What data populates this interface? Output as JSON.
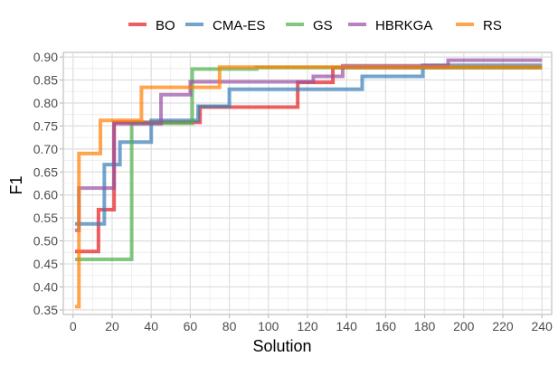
{
  "chart_data": {
    "type": "line",
    "step": true,
    "xlabel": "Solution",
    "ylabel": "F1",
    "xlim": [
      -5,
      245
    ],
    "ylim": [
      0.34,
      0.91
    ],
    "xticks": [
      0,
      20,
      40,
      60,
      80,
      100,
      120,
      140,
      160,
      180,
      200,
      220,
      240
    ],
    "yticks": [
      0.35,
      0.4,
      0.45,
      0.5,
      0.55,
      0.6,
      0.65,
      0.7,
      0.75,
      0.8,
      0.85,
      0.9
    ],
    "ytick_labels": [
      "0.35",
      "0.40",
      "0.45",
      "0.50",
      "0.55",
      "0.60",
      "0.65",
      "0.70",
      "0.75",
      "0.80",
      "0.85",
      "0.90"
    ],
    "grid": true,
    "legend_position": "top",
    "series": [
      {
        "name": "BO",
        "color": "#E41A1C",
        "x": [
          1,
          13,
          21,
          65,
          115,
          133,
          240
        ],
        "y": [
          0.477,
          0.568,
          0.758,
          0.791,
          0.845,
          0.877,
          0.877
        ]
      },
      {
        "name": "CMA-ES",
        "color": "#377EB8",
        "x": [
          1,
          16,
          24,
          40,
          64,
          80,
          148,
          179,
          240
        ],
        "y": [
          0.537,
          0.666,
          0.715,
          0.762,
          0.793,
          0.83,
          0.858,
          0.882,
          0.882
        ]
      },
      {
        "name": "GS",
        "color": "#4DAF4A",
        "x": [
          1,
          30,
          61,
          94,
          240
        ],
        "y": [
          0.46,
          0.756,
          0.874,
          0.877,
          0.877
        ]
      },
      {
        "name": "HBRKGA",
        "color": "#984EA3",
        "x": [
          1,
          3,
          21,
          45,
          60,
          123,
          138,
          192,
          240
        ],
        "y": [
          0.523,
          0.615,
          0.755,
          0.818,
          0.846,
          0.858,
          0.881,
          0.893,
          0.893
        ]
      },
      {
        "name": "RS",
        "color": "#FF7F00",
        "x": [
          1,
          3,
          14,
          35,
          75,
          240
        ],
        "y": [
          0.357,
          0.69,
          0.762,
          0.834,
          0.878,
          0.878
        ]
      }
    ]
  }
}
